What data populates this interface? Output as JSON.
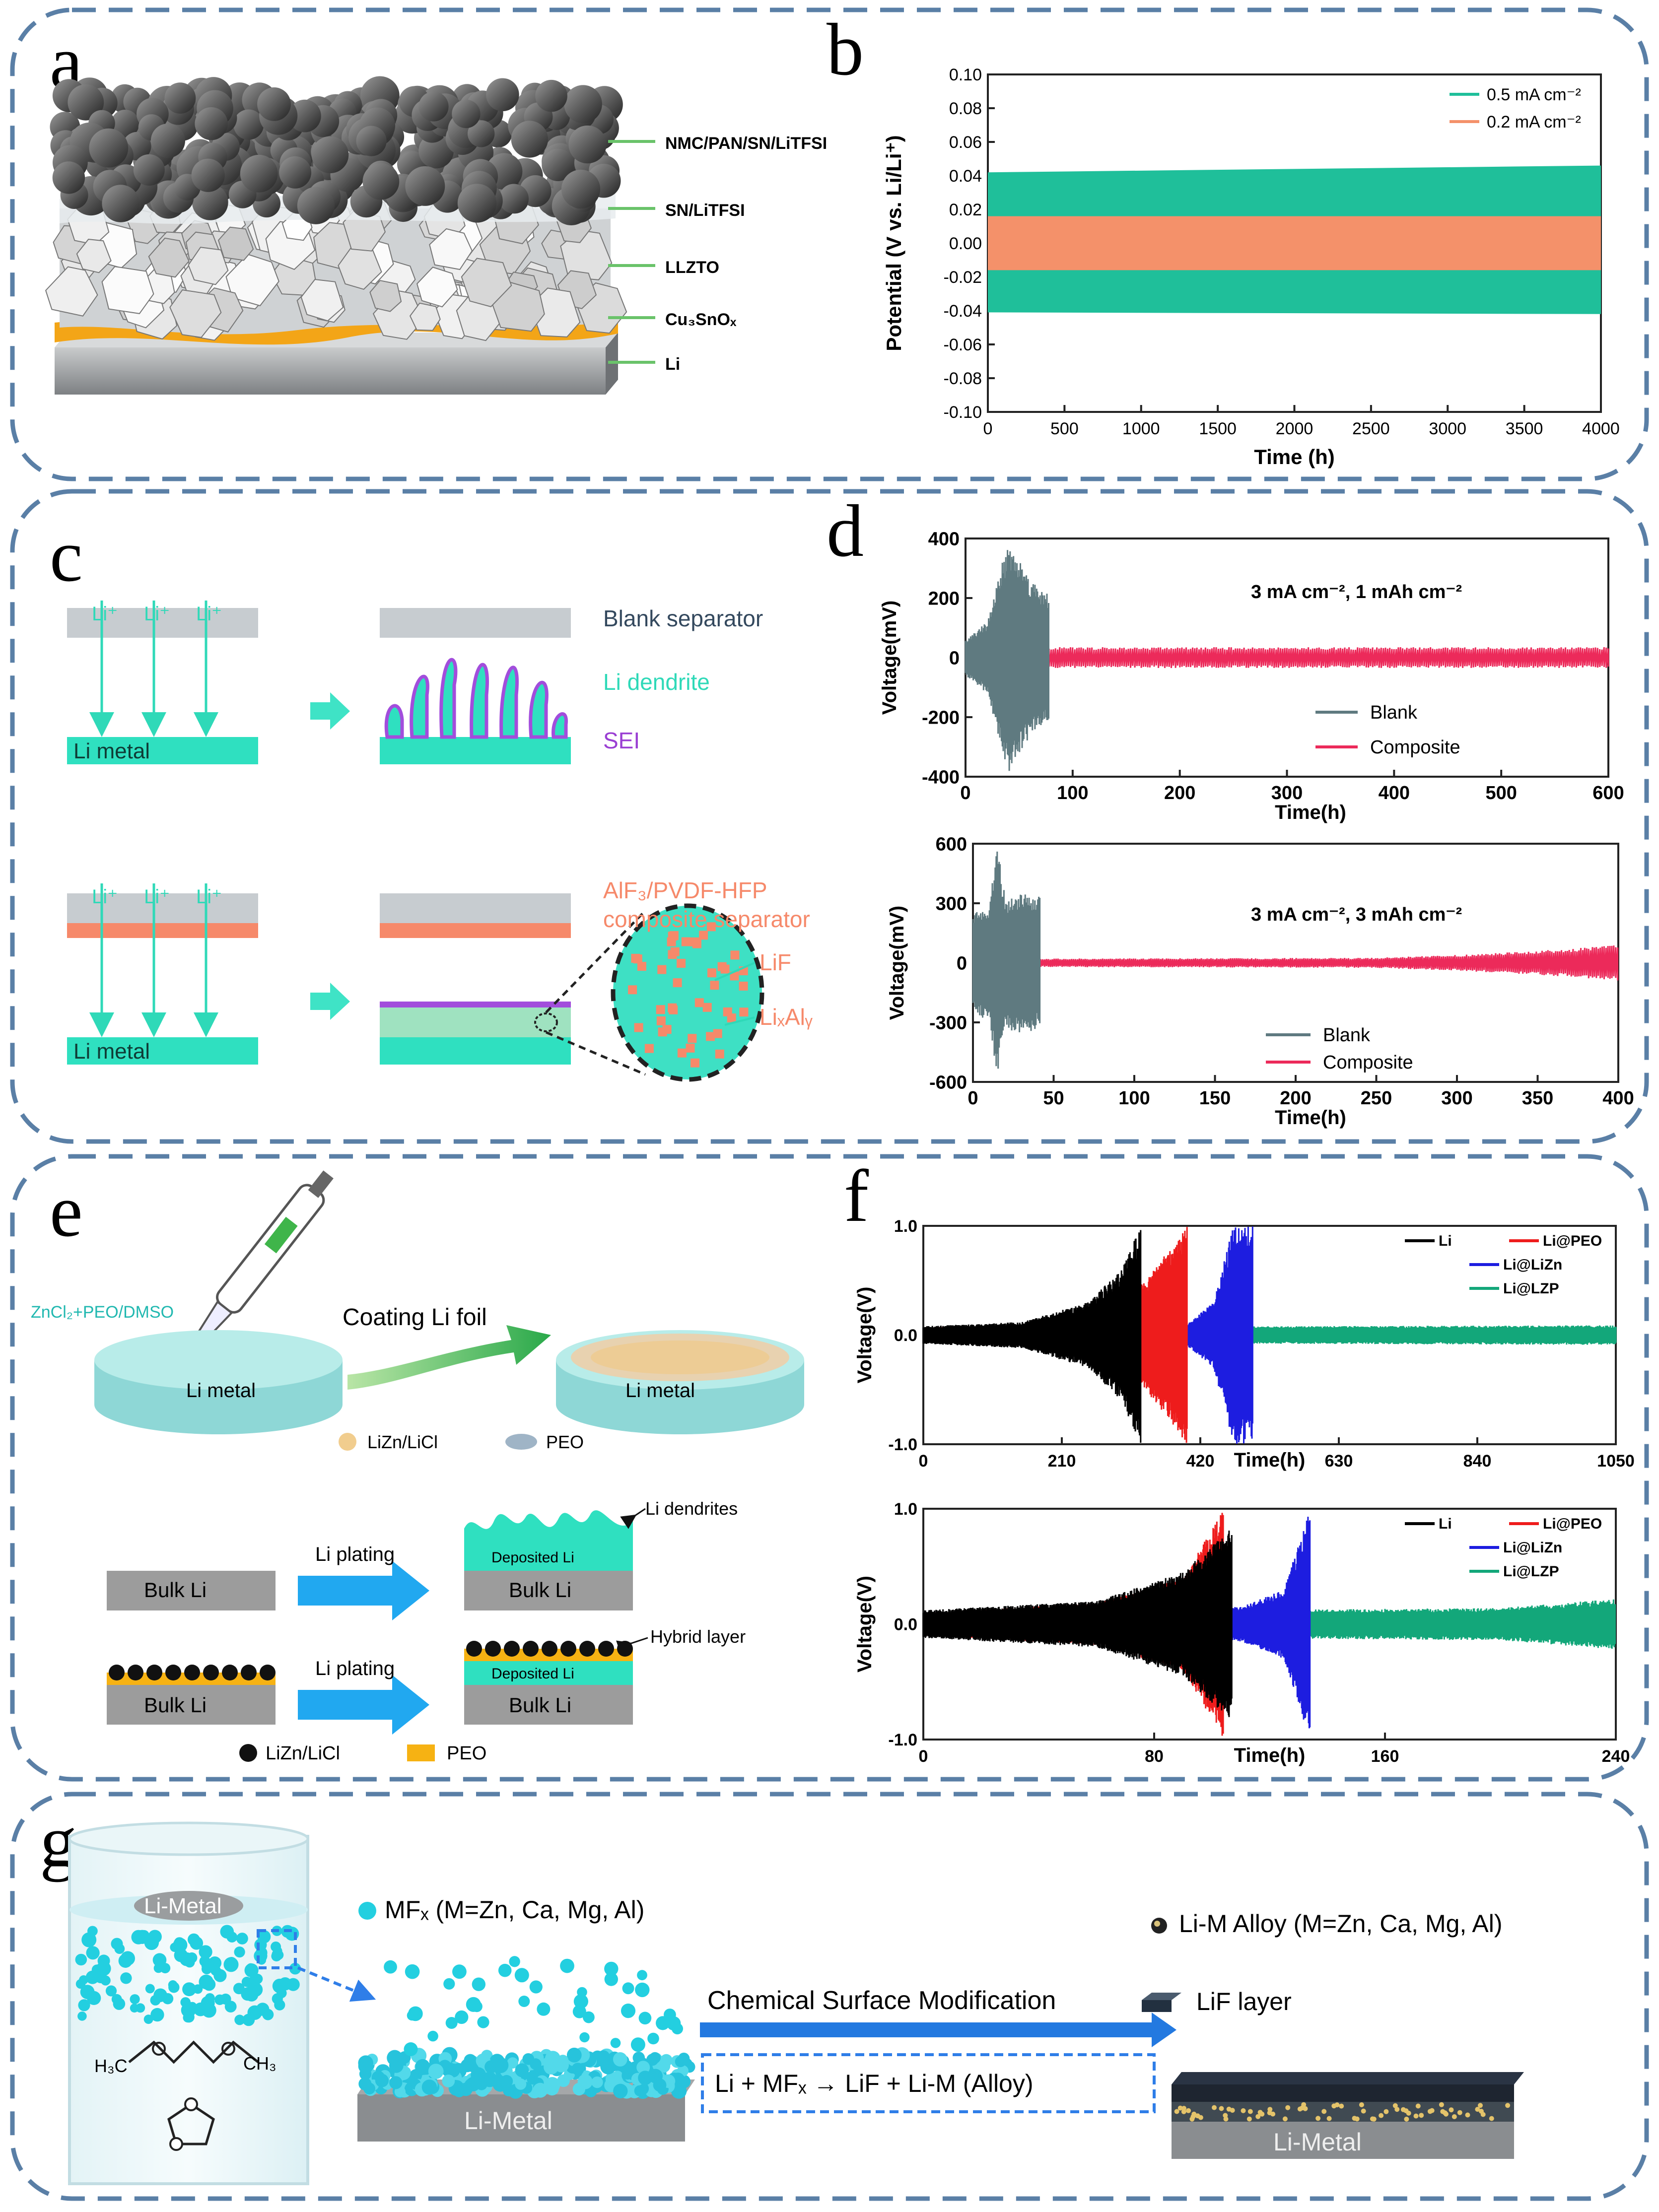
{
  "panel_letters": {
    "a": "a",
    "b": "b",
    "c": "c",
    "d": "d",
    "e": "e",
    "f": "f",
    "g": "g"
  },
  "panel_a": {
    "labels": [
      "NMC/PAN/SN/LiTFSI",
      "SN/LiTFSI",
      "LLZTO",
      "Cu₃SnOₓ",
      "Li"
    ]
  },
  "panel_c": {
    "li_plus": "Li⁺",
    "blank_separator": "Blank separator",
    "li_dendrite": "Li dendrite",
    "sei": "SEI",
    "li_metal": "Li metal",
    "composite_line1": "AlF₃/PVDF-HFP",
    "composite_line2": "composite separator",
    "lif": "LiF",
    "lixaly": "LiₓAlᵧ"
  },
  "panel_e": {
    "zncl2": "ZnCl₂+PEO/DMSO",
    "coating": "Coating Li foil",
    "li_metal": "Li metal",
    "legend_lizn": "LiZn/LiCl",
    "legend_peo": "PEO",
    "bulk_li": "Bulk Li",
    "li_plating": "Li plating",
    "deposited_li": "Deposited Li",
    "li_dendrites": "Li dendrites",
    "hybrid_layer": "Hybrid layer",
    "legend2_lizn": "LiZn/LiCl",
    "legend2_peo": "PEO"
  },
  "panel_g": {
    "li_metal": "Li-Metal",
    "mfx": "MFₓ (M=Zn, Ca, Mg, Al)",
    "alloy": "Li-M Alloy (M=Zn, Ca, Mg, Al)",
    "modification": "Chemical Surface Modification",
    "lif_layer": "LiF layer",
    "reaction": "Li + MFₓ → LiF + Li-M (Alloy)",
    "h3c": "H₃C",
    "ch3": "CH₃"
  },
  "chart_data": [
    {
      "id": "b",
      "type": "area",
      "xlabel": "Time (h)",
      "ylabel": "Potential (V vs. Li/Li⁺)",
      "xlim": [
        0,
        4000
      ],
      "ylim": [
        -0.1,
        0.1
      ],
      "xticks": [
        "0",
        "500",
        "1000",
        "1500",
        "2000",
        "2500",
        "3000",
        "3500",
        "4000"
      ],
      "yticks": [
        "0.10",
        "0.08",
        "0.06",
        "0.04",
        "0.02",
        "0.00",
        "-0.02",
        "-0.04",
        "-0.06",
        "-0.08",
        "-0.10"
      ],
      "series": [
        {
          "name": "0.5 mA cm⁻²",
          "color": "#1fbf9a",
          "x": [
            0,
            4000
          ],
          "upper": [
            0.042,
            0.046
          ],
          "lower": [
            -0.041,
            -0.042
          ]
        },
        {
          "name": "0.2 mA cm⁻²",
          "color": "#f4916a",
          "x": [
            0,
            4000
          ],
          "upper": [
            0.016,
            0.016
          ],
          "lower": [
            -0.016,
            -0.016
          ]
        }
      ],
      "legend": "top-right"
    },
    {
      "id": "d1",
      "type": "line",
      "annotation": "3 mA cm⁻², 1 mAh cm⁻²",
      "xlabel": "Time(h)",
      "ylabel": "Voltage(mV)",
      "xlim": [
        0,
        600
      ],
      "ylim": [
        -400,
        400
      ],
      "xticks": [
        "0",
        "100",
        "200",
        "300",
        "400",
        "500",
        "600"
      ],
      "yticks": [
        "400",
        "200",
        "0",
        "-200",
        "-400"
      ],
      "series": [
        {
          "name": "Blank",
          "color": "#5f7a80",
          "x": [
            0,
            20,
            40,
            60,
            78
          ],
          "amplitude": [
            60,
            120,
            400,
            270,
            210
          ]
        },
        {
          "name": "Composite",
          "color": "#ec2a5a",
          "x": [
            0,
            600
          ],
          "amplitude": [
            35,
            35
          ]
        }
      ],
      "legend": "bottom-center"
    },
    {
      "id": "d2",
      "type": "line",
      "annotation": "3 mA cm⁻², 3 mAh cm⁻²",
      "xlabel": "Time(h)",
      "ylabel": "Voltage(mV)",
      "xlim": [
        0,
        400
      ],
      "ylim": [
        -600,
        600
      ],
      "xticks": [
        "0",
        "50",
        "100",
        "150",
        "200",
        "250",
        "300",
        "350",
        "400"
      ],
      "yticks": [
        "600",
        "300",
        "0",
        "-300",
        "-600"
      ],
      "series": [
        {
          "name": "Blank",
          "color": "#5f7a80",
          "x": [
            0,
            10,
            15,
            20,
            30,
            42
          ],
          "amplitude": [
            250,
            300,
            600,
            330,
            360,
            330
          ]
        },
        {
          "name": "Composite",
          "color": "#ec2a5a",
          "x": [
            0,
            250,
            300,
            350,
            400
          ],
          "amplitude": [
            20,
            25,
            40,
            60,
            90
          ]
        }
      ],
      "legend": "bottom-left"
    },
    {
      "id": "f1",
      "type": "line",
      "xlabel": "Time(h)",
      "ylabel": "Voltage(V)",
      "xlim": [
        0,
        1050
      ],
      "ylim": [
        -1.0,
        1.0
      ],
      "xticks": [
        "0",
        "210",
        "420",
        "630",
        "840",
        "1050"
      ],
      "yticks": [
        "1.0",
        "0.0",
        "-1.0"
      ],
      "series": [
        {
          "name": "Li",
          "color": "#000000",
          "x": [
            0,
            150,
            250,
            300,
            330
          ],
          "amplitude": [
            0.08,
            0.12,
            0.3,
            0.6,
            1.0
          ]
        },
        {
          "name": "Li@PEO",
          "color": "#ee1c1c",
          "x": [
            0,
            200,
            300,
            350,
            400
          ],
          "amplitude": [
            0.07,
            0.1,
            0.25,
            0.6,
            1.0
          ]
        },
        {
          "name": "Li@LiZn",
          "color": "#1d1de0",
          "x": [
            0,
            400,
            440,
            470,
            500
          ],
          "amplitude": [
            0.06,
            0.1,
            0.3,
            1.0,
            1.0
          ]
        },
        {
          "name": "Li@LZP",
          "color": "#13a77a",
          "x": [
            0,
            1050
          ],
          "amplitude": [
            0.07,
            0.09
          ]
        }
      ],
      "legend": "top-right"
    },
    {
      "id": "f2",
      "type": "line",
      "xlabel": "Time(h)",
      "ylabel": "Voltage(V)",
      "xlim": [
        0,
        240
      ],
      "ylim": [
        -1.0,
        1.0
      ],
      "xticks": [
        "0",
        "80",
        "160",
        "240"
      ],
      "yticks": [
        "1.0",
        "0.0",
        "-1.0"
      ],
      "series": [
        {
          "name": "Li",
          "color": "#000000",
          "x": [
            0,
            60,
            90,
            107
          ],
          "amplitude": [
            0.12,
            0.2,
            0.45,
            0.85
          ]
        },
        {
          "name": "Li@PEO",
          "color": "#ee1c1c",
          "x": [
            0,
            60,
            90,
            104
          ],
          "amplitude": [
            0.1,
            0.18,
            0.4,
            1.0
          ]
        },
        {
          "name": "Li@LiZn",
          "color": "#1d1de0",
          "x": [
            0,
            110,
            125,
            134
          ],
          "amplitude": [
            0.1,
            0.15,
            0.3,
            1.0
          ]
        },
        {
          "name": "Li@LZP",
          "color": "#13a77a",
          "x": [
            0,
            200,
            240
          ],
          "amplitude": [
            0.1,
            0.14,
            0.22
          ]
        }
      ],
      "legend": "top-right"
    }
  ]
}
